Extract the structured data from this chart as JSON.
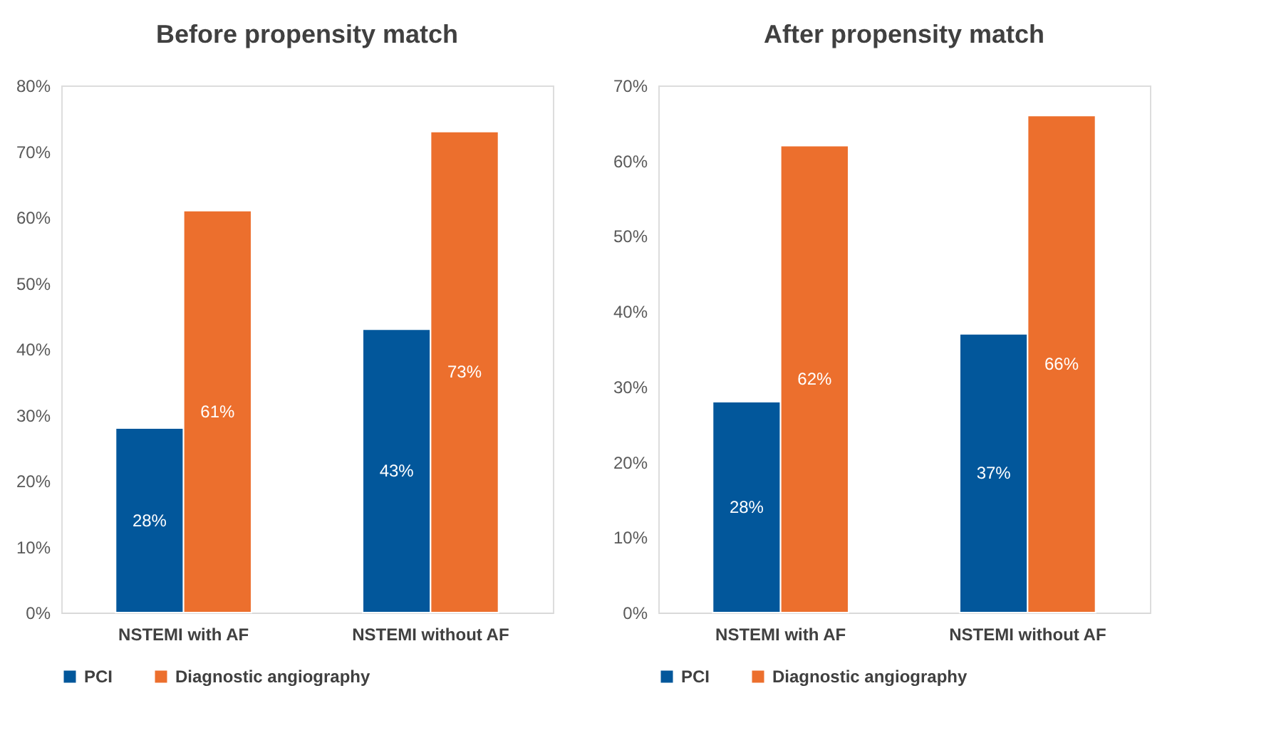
{
  "chart_data": [
    {
      "type": "bar",
      "title": "Before propensity match",
      "categories": [
        "NSTEMI with AF",
        "NSTEMI without AF"
      ],
      "series": [
        {
          "name": "PCI",
          "color": "#02579b",
          "values": [
            28,
            43
          ],
          "value_labels": [
            "28%",
            "43%"
          ]
        },
        {
          "name": "Diagnostic angiography",
          "color": "#ec6f2d",
          "values": [
            61,
            73
          ],
          "value_labels": [
            "61%",
            "73%"
          ]
        }
      ],
      "ylim": [
        0,
        80
      ],
      "yticks": [
        {
          "value": 0,
          "label": "0%"
        },
        {
          "value": 10,
          "label": "10%"
        },
        {
          "value": 20,
          "label": "20%"
        },
        {
          "value": 30,
          "label": "30%"
        },
        {
          "value": 40,
          "label": "40%"
        },
        {
          "value": 50,
          "label": "50%"
        },
        {
          "value": 60,
          "label": "60%"
        },
        {
          "value": 70,
          "label": "70%"
        },
        {
          "value": 80,
          "label": "80%"
        }
      ],
      "grid": false,
      "legend": "bottom"
    },
    {
      "type": "bar",
      "title": "After propensity match",
      "categories": [
        "NSTEMI with AF",
        "NSTEMI without AF"
      ],
      "series": [
        {
          "name": "PCI",
          "color": "#02579b",
          "values": [
            28,
            37
          ],
          "value_labels": [
            "28%",
            "37%"
          ]
        },
        {
          "name": "Diagnostic angiography",
          "color": "#ec6f2d",
          "values": [
            62,
            66
          ],
          "value_labels": [
            "62%",
            "66%"
          ]
        }
      ],
      "ylim": [
        0,
        70
      ],
      "yticks": [
        {
          "value": 0,
          "label": "0%"
        },
        {
          "value": 10,
          "label": "10%"
        },
        {
          "value": 20,
          "label": "20%"
        },
        {
          "value": 30,
          "label": "30%"
        },
        {
          "value": 40,
          "label": "40%"
        },
        {
          "value": 50,
          "label": "50%"
        },
        {
          "value": 60,
          "label": "60%"
        },
        {
          "value": 70,
          "label": "70%"
        }
      ],
      "grid": false,
      "legend": "bottom"
    }
  ]
}
